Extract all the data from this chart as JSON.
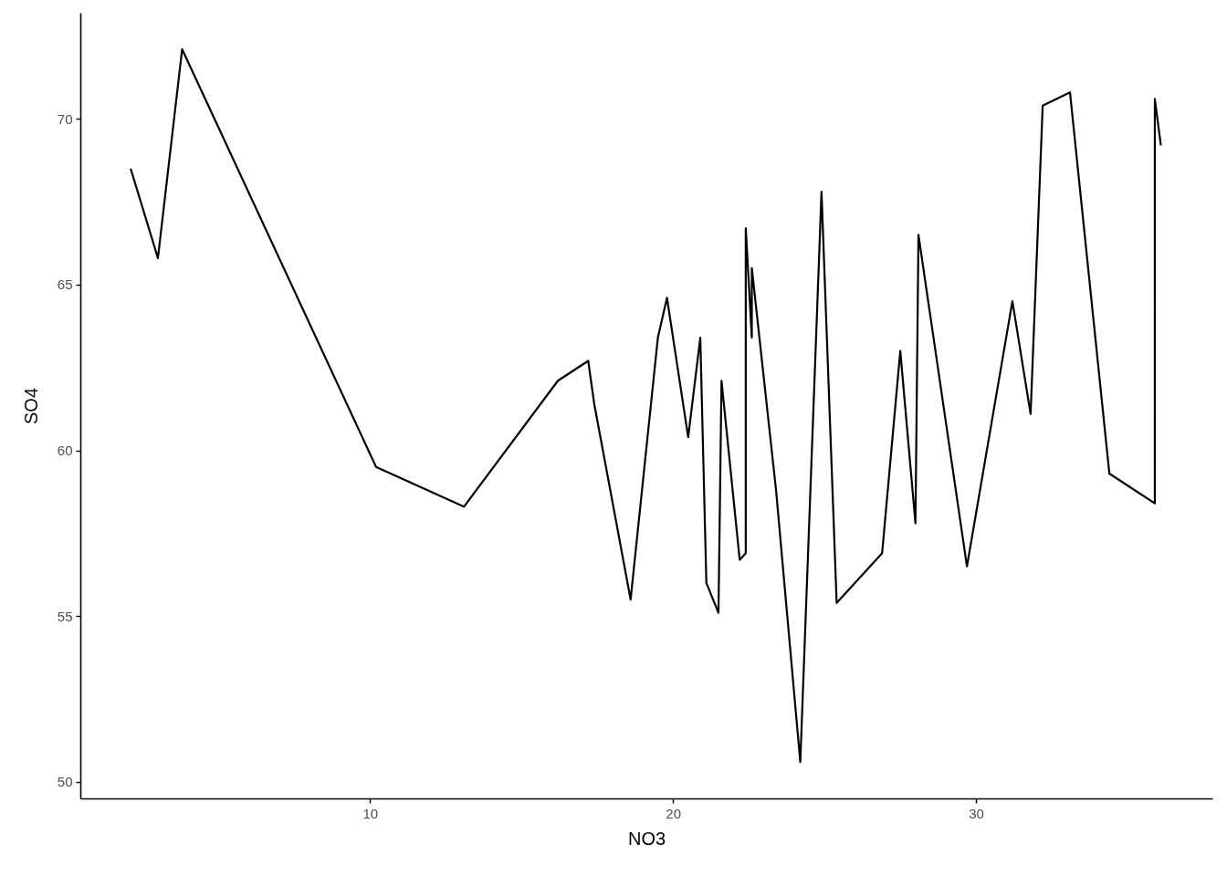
{
  "chart_data": {
    "type": "line",
    "xlabel": "NO3",
    "ylabel": "SO4",
    "color": "#000000",
    "x": [
      2.1,
      3.0,
      3.8,
      10.2,
      13.1,
      16.2,
      17.2,
      17.4,
      18.6,
      19.5,
      19.8,
      20.5,
      20.9,
      21.1,
      21.5,
      21.6,
      22.2,
      22.4,
      22.4,
      22.6,
      22.6,
      23.4,
      24.2,
      24.9,
      25.4,
      26.9,
      27.5,
      28.0,
      28.1,
      29.7,
      31.2,
      31.8,
      32.2,
      33.1,
      34.4,
      35.9,
      35.9,
      36.1
    ],
    "values": [
      68.5,
      65.8,
      72.1,
      59.5,
      58.3,
      62.1,
      62.7,
      61.4,
      55.5,
      63.4,
      64.6,
      60.4,
      63.4,
      56.0,
      55.1,
      62.1,
      56.7,
      56.9,
      66.7,
      63.4,
      65.5,
      58.8,
      50.6,
      67.8,
      55.4,
      56.9,
      63.0,
      57.8,
      66.5,
      56.5,
      64.5,
      61.1,
      70.4,
      70.8,
      59.3,
      58.4,
      70.6,
      69.2
    ],
    "xlim": [
      0.44,
      37.8
    ],
    "ylim": [
      49.5,
      73.2
    ],
    "xticks": [
      10,
      20,
      30
    ],
    "yticks": [
      50,
      55,
      60,
      65,
      70
    ],
    "grid": false,
    "marker": "none",
    "line_style": "solid"
  }
}
